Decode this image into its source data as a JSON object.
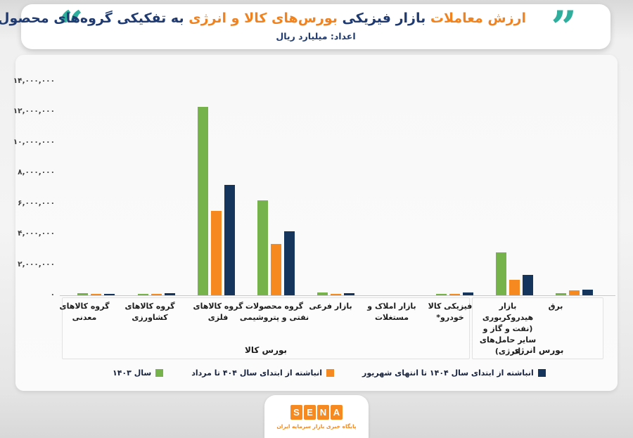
{
  "title": {
    "parts": [
      {
        "text": "ارزش معاملات ",
        "color": "orange"
      },
      {
        "text": "بازار فیزیکی ",
        "color": "navy"
      },
      {
        "text": "بورس‌های کالا و انرژی ",
        "color": "orange"
      },
      {
        "text": "به تفکیکی گروه‌های محصول",
        "color": "navy"
      }
    ],
    "subtitle": "اعداد: میلیارد ریال"
  },
  "icons": {
    "quote_open_glyph": "“",
    "quote_close_glyph": "”"
  },
  "colors": {
    "title_orange": "#f0831f",
    "title_navy": "#1e3a70",
    "quote_teal": "#2fae9e",
    "bar_green": "#76b34b",
    "bar_orange": "#f6891f",
    "bar_navy": "#16355c"
  },
  "chart_data": {
    "type": "bar",
    "title": "ارزش معاملات بازار فیزیکی بورس‌های کالا و انرژی به تفکیکی گروه‌های محصول",
    "unit_note": "اعداد: میلیارد ریال",
    "ylabel": "",
    "xlabel": "",
    "ylim": [
      0,
      14000000
    ],
    "grid": false,
    "legend_position": "bottom",
    "yticks": [
      {
        "value": 14000000,
        "label": "۱۴,۰۰۰,۰۰۰"
      },
      {
        "value": 12000000,
        "label": "۱۲,۰۰۰,۰۰۰"
      },
      {
        "value": 10000000,
        "label": "۱۰,۰۰۰,۰۰۰"
      },
      {
        "value": 8000000,
        "label": "۸,۰۰۰,۰۰۰"
      },
      {
        "value": 6000000,
        "label": "۶,۰۰۰,۰۰۰"
      },
      {
        "value": 4000000,
        "label": "۴,۰۰۰,۰۰۰"
      },
      {
        "value": 2000000,
        "label": "۲,۰۰۰,۰۰۰"
      },
      {
        "value": 0,
        "label": "۰"
      }
    ],
    "categories": [
      "گروه کالاهای معدنی",
      "گروه کالاهای کشاورزی",
      "گروه کالاهای فلزی",
      "گروه محصولات نفتی و پتروشیمی",
      "بازار فرعی",
      "بازار املاک و مستغلات",
      "فیزیکی کالا خودرو*",
      "بازار هیدروکربوری (نفت و گاز و سایر حامل‌های انرژی)",
      "برق"
    ],
    "category_groups": [
      {
        "label": "بورس کالا",
        "span": [
          0,
          6
        ]
      },
      {
        "label": "بورس انرژی",
        "span": [
          7,
          8
        ]
      }
    ],
    "series": [
      {
        "name": "سال ۱۴۰۳",
        "color": "#76b34b",
        "values": [
          150000,
          100000,
          12300000,
          6200000,
          180000,
          0,
          80000,
          2800000,
          140000
        ]
      },
      {
        "name": "انباشته از ابتدای سال ۴۰۴ تا مرداد",
        "color": "#f6891f",
        "values": [
          90000,
          100000,
          5500000,
          3350000,
          100000,
          0,
          105000,
          1000000,
          310000
        ]
      },
      {
        "name": "انباشته از ابتدای سال ۱۴۰۴ تا انتهای شهریور",
        "color": "#16355c",
        "values": [
          105000,
          125000,
          7200000,
          4200000,
          120000,
          0,
          170000,
          1350000,
          345000
        ]
      }
    ]
  },
  "footer": {
    "logo_letters": [
      "S",
      "E",
      "N",
      "A"
    ],
    "logo_color": "#f6891f",
    "tagline": "پایگاه خبری بازار سرمایه ایران"
  }
}
